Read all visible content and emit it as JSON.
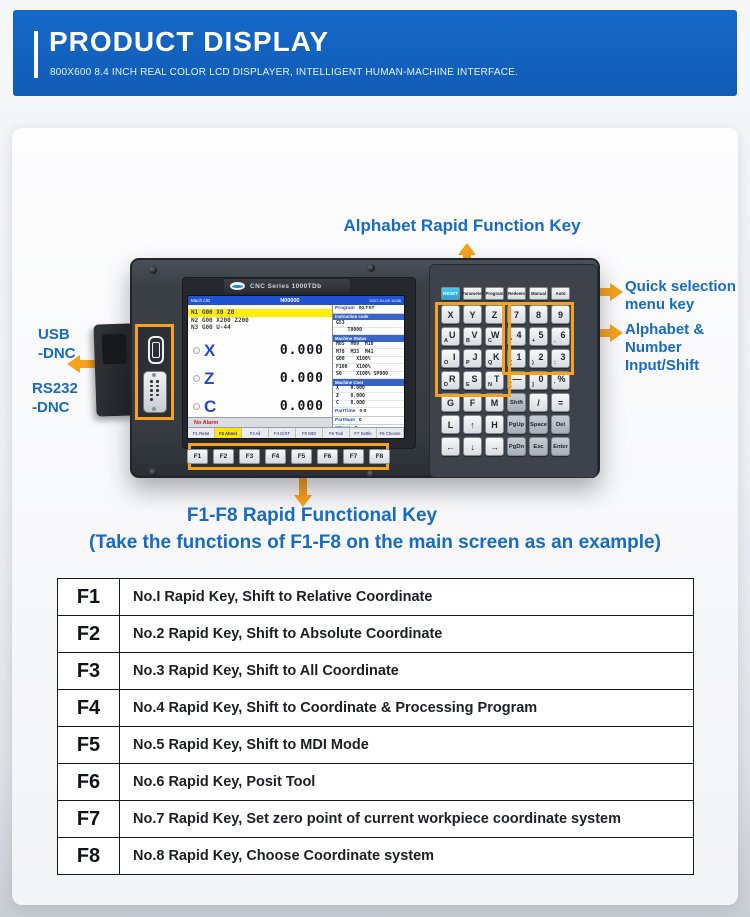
{
  "header": {
    "title": "PRODUCT DISPLAY",
    "subtitle": "800X600 8.4 INCH REAL COLOR LCD DISPLAYER, INTELLIGENT HUMAN-MACHINE INTERFACE."
  },
  "colors": {
    "header_blue": "#1568c8",
    "callout_blue": "#176bc7",
    "highlight_orange": "#f6a21c",
    "reset_key_cyan": "#23a7d5",
    "active_tab_yellow": "#ffe600"
  },
  "callouts": {
    "alphabet_rapid": "Alphabet Rapid Function Key",
    "quick_selection": "Quick selection menu key",
    "alphabet_number": "Alphabet & Number Input/Shift",
    "usb": "USB\n-DNC",
    "rs232": "RS232\n-DNC",
    "f1f8_title": "F1-F8 Rapid Functional Key",
    "f1f8_note": "(Take the functions of F1-F8 on the main screen as an example)"
  },
  "device": {
    "brand_plate": "CNC Series 1000TDb",
    "fkeys": [
      "F1",
      "F2",
      "F3",
      "F4",
      "F5",
      "F6",
      "F7",
      "F8"
    ],
    "screen": {
      "topbar": {
        "left": "Mach /JG",
        "center": "N00000",
        "right": "2017-01-09 10:56"
      },
      "program_lines": [
        {
          "text": "N1 G00 X0 Z0",
          "highlight": true
        },
        {
          "text": "N2 G00 X200 Z200"
        },
        {
          "text": "N3 G00 U-44"
        }
      ],
      "axes": [
        {
          "label": "X",
          "value": "0.000"
        },
        {
          "label": "Z",
          "value": "0.000"
        },
        {
          "label": "C",
          "value": "0.000"
        }
      ],
      "right_panel": [
        {
          "t": "kv",
          "label": "Program",
          "value": "00.TXT"
        },
        {
          "t": "hdr",
          "text": "Instruction code"
        },
        {
          "t": "row",
          "text": "G53"
        },
        {
          "t": "row",
          "text": "    T0000"
        },
        {
          "t": "hdr",
          "text": "Machine Status"
        },
        {
          "t": "row",
          "text": "M05  M09  M10"
        },
        {
          "t": "row",
          "text": "M78  M33  M41"
        },
        {
          "t": "row",
          "text": "G00    X100%"
        },
        {
          "t": "row",
          "text": "F100   X100%"
        },
        {
          "t": "row",
          "text": "S0     X100% SP000"
        },
        {
          "t": "hdr",
          "text": "Machine Coor"
        },
        {
          "t": "row",
          "text": "X    0.000"
        },
        {
          "t": "row",
          "text": "Z    0.000"
        },
        {
          "t": "row",
          "text": "C    0.000"
        },
        {
          "t": "kv",
          "label": "PartTime",
          "value": "0 0"
        },
        {
          "t": "kv",
          "label": "PartNum",
          "value": "0"
        },
        {
          "t": "kv",
          "label": "SProm",
          "value": "0"
        }
      ],
      "alarm": "No Alarm",
      "tabs": [
        {
          "label": "F1 Relat"
        },
        {
          "label": "F2 Absol",
          "active": true
        },
        {
          "label": "F3 All"
        },
        {
          "label": "F4 G/ST"
        },
        {
          "label": "F5 MDI"
        },
        {
          "label": "F6 Tool"
        },
        {
          "label": "F7 Settle"
        },
        {
          "label": "F8 Choose"
        }
      ]
    },
    "keyboard": {
      "rows": [
        [
          {
            "id": "reset",
            "main": "RESET",
            "accent": true
          },
          {
            "id": "parameter",
            "main": "Parameter"
          },
          {
            "id": "program",
            "main": "Program"
          },
          {
            "id": "redeem",
            "main": "Redeem"
          },
          {
            "id": "manual",
            "main": "Manual"
          },
          {
            "id": "auto",
            "main": "Auto"
          }
        ],
        [
          {
            "id": "x",
            "main": "X"
          },
          {
            "id": "y",
            "main": "Y"
          },
          {
            "id": "z",
            "main": "Z"
          },
          {
            "id": "7",
            "main": "7"
          },
          {
            "id": "8",
            "main": "8"
          },
          {
            "id": "9",
            "main": "9"
          }
        ],
        [
          {
            "id": "u",
            "sub": "A",
            "main": "U"
          },
          {
            "id": "v",
            "sub": "B",
            "main": "V"
          },
          {
            "id": "w",
            "sub": "C",
            "main": "W"
          },
          {
            "id": "4",
            "sub": "*",
            "main": "4"
          },
          {
            "id": "5",
            "sub": "+",
            "main": "5"
          },
          {
            "id": "6",
            "sub": ".",
            "main": "6"
          }
        ],
        [
          {
            "id": "i",
            "sub": "O",
            "main": "I"
          },
          {
            "id": "j",
            "sub": "P",
            "main": "J"
          },
          {
            "id": "k",
            "sub": "Q",
            "main": "K"
          },
          {
            "id": "1",
            "sub": "(",
            "main": "1"
          },
          {
            "id": "2",
            "sub": ")",
            "main": "2"
          },
          {
            "id": "3",
            "sub": ":",
            "main": "3"
          }
        ],
        [
          {
            "id": "r",
            "sub": "D",
            "main": "R"
          },
          {
            "id": "s",
            "sub": "E",
            "main": "S"
          },
          {
            "id": "t",
            "sub": "N",
            "main": "T"
          },
          {
            "id": "minus",
            "sub": "[",
            "main": "—"
          },
          {
            "id": "0",
            "sub": "]",
            "main": "0"
          },
          {
            "id": "percent",
            "sub": "'",
            "main": "%"
          }
        ],
        [
          {
            "id": "g",
            "main": "G"
          },
          {
            "id": "f",
            "main": "F"
          },
          {
            "id": "m",
            "main": "M"
          },
          {
            "id": "shift",
            "main": "Shift",
            "dark": true
          },
          {
            "id": "slash",
            "main": "/"
          },
          {
            "id": "equals",
            "main": "="
          }
        ],
        [
          {
            "id": "l",
            "main": "L"
          },
          {
            "id": "arrow-up",
            "main": "↑"
          },
          {
            "id": "h",
            "main": "H"
          },
          {
            "id": "pgup",
            "main": "PgUp",
            "dark": true
          },
          {
            "id": "space",
            "main": "Space",
            "dark": true
          },
          {
            "id": "del",
            "main": "Del",
            "dark": true
          }
        ],
        [
          {
            "id": "arrow-left",
            "main": "←"
          },
          {
            "id": "arrow-down",
            "main": "↓"
          },
          {
            "id": "arrow-right",
            "main": "→"
          },
          {
            "id": "pgdn",
            "main": "PgDn",
            "dark": true
          },
          {
            "id": "esc",
            "main": "Esc",
            "dark": true
          },
          {
            "id": "enter",
            "main": "Enter",
            "dark": true
          }
        ]
      ]
    }
  },
  "table": {
    "rows": [
      {
        "key": "F1",
        "desc": "No.I Rapid Key, Shift to Relative Coordinate"
      },
      {
        "key": "F2",
        "desc": "No.2 Rapid Key, Shift to Absolute Coordinate"
      },
      {
        "key": "F3",
        "desc": "No.3 Rapid Key, Shift to All Coordinate"
      },
      {
        "key": "F4",
        "desc": "No.4 Rapid Key, Shift to Coordinate & Processing Program"
      },
      {
        "key": "F5",
        "desc": "No.5 Rapid Key, Shift to MDI Mode"
      },
      {
        "key": "F6",
        "desc": "No.6 Rapid Key, Posit Tool"
      },
      {
        "key": "F7",
        "desc": "No.7 Rapid Key, Set zero point of current workpiece coordinate system"
      },
      {
        "key": "F8",
        "desc": "No.8 Rapid Key, Choose Coordinate system"
      }
    ]
  }
}
